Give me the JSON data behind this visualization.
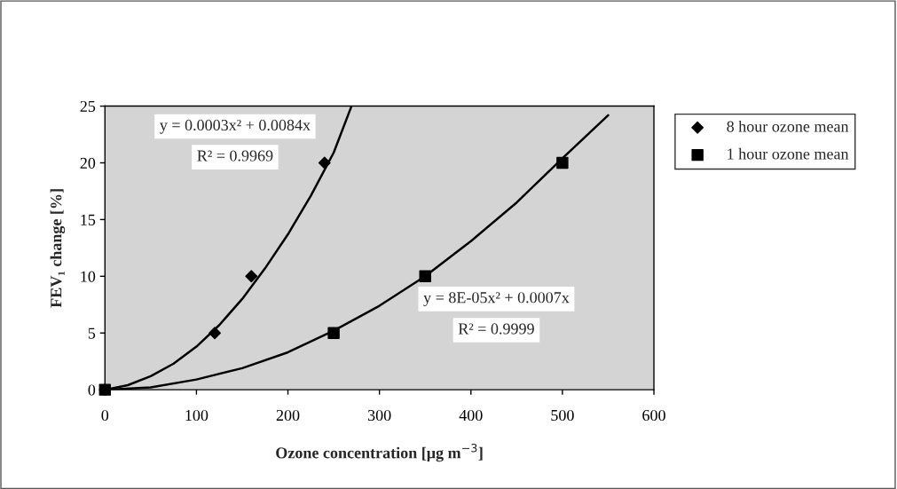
{
  "chart_data": {
    "type": "scatter",
    "xlabel": "Ozone concentration [μg m$^{−3}$]",
    "ylabel": "FEV₁ change [%]",
    "xlim": [
      0,
      600
    ],
    "xticks": [
      0,
      100,
      200,
      300,
      400,
      500,
      600
    ],
    "ylim": [
      0,
      25
    ],
    "yticks": [
      0,
      5,
      10,
      15,
      20,
      25
    ],
    "grid": false,
    "legend": "right",
    "series": [
      {
        "name": "8 hour ozone mean",
        "color": "#000000",
        "marker": "diamond",
        "x": [
          0,
          120,
          160,
          240
        ],
        "values": [
          0,
          5,
          10,
          20
        ]
      },
      {
        "name": "1 hour ozone mean",
        "color": "#000000",
        "marker": "square",
        "x": [
          0,
          250,
          350,
          500
        ],
        "values": [
          0,
          5,
          10,
          20
        ]
      },
      {
        "type": "line",
        "color": "#000000",
        "marker": "none",
        "line_style": "solid",
        "x": [
          0,
          25,
          50,
          75,
          100,
          125,
          150,
          175,
          200,
          225,
          250,
          269
        ],
        "values": [
          0,
          0.4,
          1.2,
          2.3,
          3.8,
          5.7,
          8.0,
          10.7,
          13.7,
          17.1,
          20.9,
          24.9
        ]
      },
      {
        "type": "line",
        "color": "#000000",
        "marker": "none",
        "line_style": "solid",
        "x": [
          0,
          50,
          100,
          150,
          200,
          250,
          300,
          350,
          400,
          450,
          500,
          550
        ],
        "values": [
          0,
          0.2,
          0.9,
          1.9,
          3.3,
          5.2,
          7.4,
          10.0,
          13.1,
          16.5,
          20.4,
          24.2
        ]
      }
    ],
    "annotations": [
      "y = 0.0003x² + 0.0084x",
      "R² = 0.9969",
      "y = 8E-05x² + 0.0007x",
      "R² = 0.9999"
    ]
  }
}
